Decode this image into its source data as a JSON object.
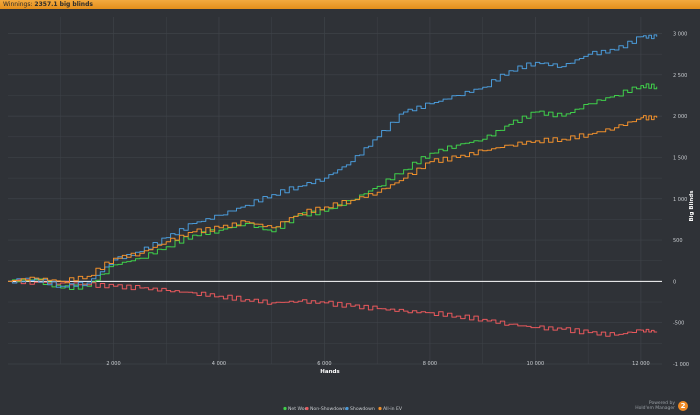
{
  "header": {
    "label": "Winnings:",
    "value": "2357.1 big blinds"
  },
  "brand": {
    "line1": "Powered by",
    "line2": "Hold'em Manager",
    "logo_letter": "2"
  },
  "colors": {
    "net_won": "#3fd04a",
    "non_showdown": "#e8585c",
    "showdown": "#4a9ad8",
    "all_in_ev": "#f0902c",
    "zero_line": "#ffffff",
    "grid": "#3f4349",
    "background": "#2f3237"
  },
  "chart_data": {
    "type": "line",
    "xlabel": "Hands",
    "ylabel": "Big Blinds",
    "xlim": [
      0,
      12400
    ],
    "ylim": [
      -1000,
      3200
    ],
    "x_ticks": [
      2000,
      4000,
      6000,
      8000,
      10000,
      12000
    ],
    "x_tick_labels": [
      "2 000",
      "4 000",
      "6 000",
      "8 000",
      "10 000",
      "12 000"
    ],
    "y_ticks": [
      -1000,
      -500,
      0,
      500,
      1000,
      1500,
      2000,
      2500,
      3000
    ],
    "y_tick_labels": [
      "-1 000",
      "-500",
      "0",
      "500",
      "1 000",
      "1 500",
      "2 000",
      "2 500",
      "3 000"
    ],
    "grid": true,
    "legend_position": "bottom-center",
    "x": [
      0,
      500,
      1000,
      1500,
      2000,
      2500,
      3000,
      3500,
      4000,
      4500,
      5000,
      5500,
      6000,
      6500,
      7000,
      7500,
      8000,
      8500,
      9000,
      9500,
      10000,
      10500,
      11000,
      11500,
      12000,
      12300
    ],
    "series": [
      {
        "name": "Net Won",
        "color": "#3fd04a",
        "values": [
          0,
          20,
          -80,
          -60,
          200,
          280,
          420,
          560,
          620,
          700,
          600,
          800,
          850,
          980,
          1150,
          1350,
          1550,
          1650,
          1720,
          1900,
          2050,
          2000,
          2150,
          2250,
          2370,
          2357
        ]
      },
      {
        "name": "Non-Showdown",
        "color": "#e8585c",
        "values": [
          0,
          -10,
          -20,
          -40,
          -60,
          -80,
          -110,
          -140,
          -180,
          -220,
          -260,
          -240,
          -260,
          -300,
          -330,
          -360,
          -380,
          -420,
          -460,
          -520,
          -560,
          -580,
          -620,
          -650,
          -590,
          -610
        ]
      },
      {
        "name": "Showdown",
        "color": "#4a9ad8",
        "values": [
          0,
          30,
          -60,
          -20,
          260,
          360,
          530,
          700,
          800,
          920,
          1050,
          1150,
          1250,
          1450,
          1750,
          2050,
          2150,
          2250,
          2350,
          2550,
          2650,
          2600,
          2750,
          2800,
          2960,
          2960
        ]
      },
      {
        "name": "All-in EV",
        "color": "#f0902c",
        "values": [
          0,
          40,
          0,
          60,
          280,
          340,
          480,
          600,
          650,
          720,
          650,
          820,
          900,
          980,
          1080,
          1250,
          1450,
          1500,
          1580,
          1650,
          1700,
          1720,
          1780,
          1860,
          1980,
          1980
        ]
      }
    ]
  }
}
